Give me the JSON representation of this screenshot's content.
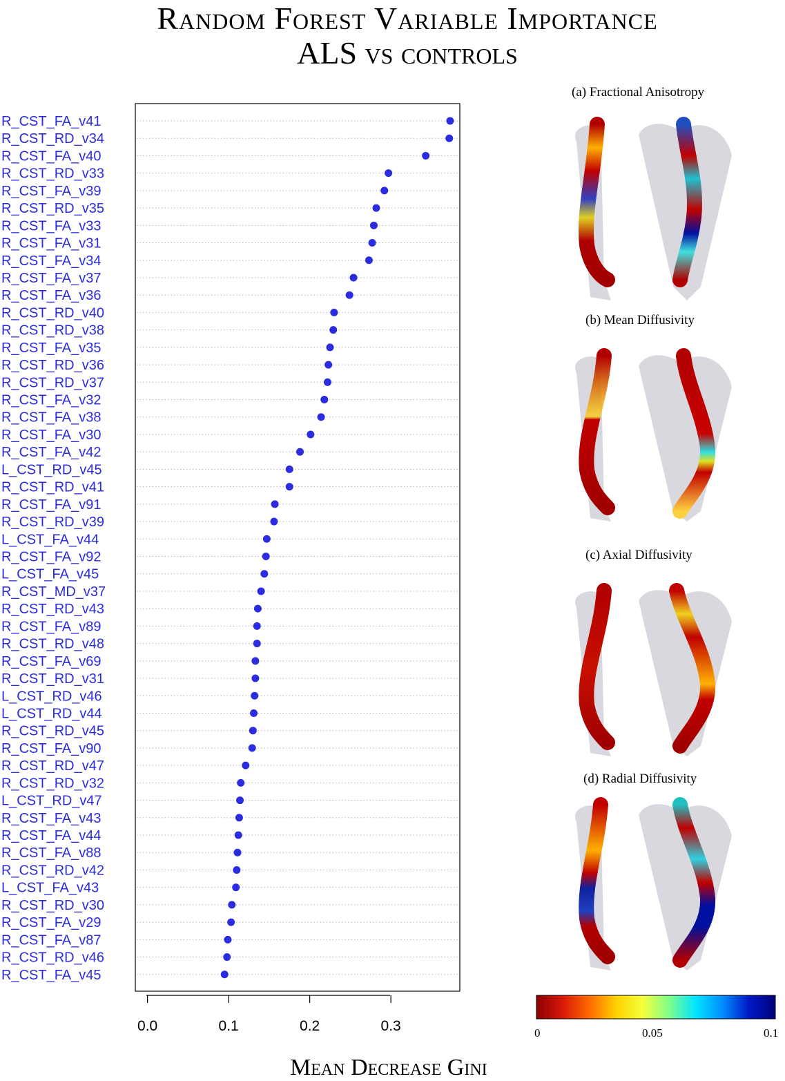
{
  "title": {
    "line1": "Random Forest Variable Importance",
    "line2": "ALS vs controls"
  },
  "chart_data": {
    "type": "scatter",
    "style": "dot-chart",
    "xlabel": "Mean Decrease Gini",
    "xticks": [
      "0.0",
      "0.1",
      "0.2",
      "0.3"
    ],
    "xlim": [
      -0.015,
      0.385
    ],
    "grid": "dotted horizontal",
    "point_color": "#2b2bdf",
    "label_color": "#2b2bdf",
    "variables": [
      {
        "name": "R_CST_FA_v41",
        "value": 0.373
      },
      {
        "name": "R_CST_RD_v34",
        "value": 0.372
      },
      {
        "name": "R_CST_FA_v40",
        "value": 0.343
      },
      {
        "name": "R_CST_RD_v33",
        "value": 0.297
      },
      {
        "name": "R_CST_FA_v39",
        "value": 0.292
      },
      {
        "name": "R_CST_RD_v35",
        "value": 0.282
      },
      {
        "name": "R_CST_FA_v33",
        "value": 0.279
      },
      {
        "name": "R_CST_FA_v31",
        "value": 0.277
      },
      {
        "name": "R_CST_FA_v34",
        "value": 0.273
      },
      {
        "name": "R_CST_FA_v37",
        "value": 0.254
      },
      {
        "name": "R_CST_FA_v36",
        "value": 0.249
      },
      {
        "name": "R_CST_RD_v40",
        "value": 0.23
      },
      {
        "name": "R_CST_RD_v38",
        "value": 0.229
      },
      {
        "name": "R_CST_FA_v35",
        "value": 0.225
      },
      {
        "name": "R_CST_RD_v36",
        "value": 0.223
      },
      {
        "name": "R_CST_RD_v37",
        "value": 0.222
      },
      {
        "name": "R_CST_FA_v32",
        "value": 0.218
      },
      {
        "name": "R_CST_FA_v38",
        "value": 0.214
      },
      {
        "name": "R_CST_FA_v30",
        "value": 0.201
      },
      {
        "name": "R_CST_FA_v42",
        "value": 0.188
      },
      {
        "name": "L_CST_RD_v45",
        "value": 0.175
      },
      {
        "name": "R_CST_RD_v41",
        "value": 0.175
      },
      {
        "name": "R_CST_FA_v91",
        "value": 0.157
      },
      {
        "name": "R_CST_RD_v39",
        "value": 0.156
      },
      {
        "name": "L_CST_FA_v44",
        "value": 0.147
      },
      {
        "name": "R_CST_FA_v92",
        "value": 0.146
      },
      {
        "name": "L_CST_FA_v45",
        "value": 0.144
      },
      {
        "name": "R_CST_MD_v37",
        "value": 0.14
      },
      {
        "name": "R_CST_RD_v43",
        "value": 0.136
      },
      {
        "name": "R_CST_FA_v89",
        "value": 0.135
      },
      {
        "name": "R_CST_RD_v48",
        "value": 0.135
      },
      {
        "name": "R_CST_FA_v69",
        "value": 0.133
      },
      {
        "name": "R_CST_RD_v31",
        "value": 0.133
      },
      {
        "name": "L_CST_RD_v46",
        "value": 0.132
      },
      {
        "name": "L_CST_RD_v44",
        "value": 0.131
      },
      {
        "name": "R_CST_RD_v45",
        "value": 0.13
      },
      {
        "name": "R_CST_FA_v90",
        "value": 0.129
      },
      {
        "name": "R_CST_RD_v47",
        "value": 0.121
      },
      {
        "name": "R_CST_RD_v32",
        "value": 0.115
      },
      {
        "name": "L_CST_RD_v47",
        "value": 0.114
      },
      {
        "name": "R_CST_FA_v43",
        "value": 0.113
      },
      {
        "name": "R_CST_FA_v44",
        "value": 0.112
      },
      {
        "name": "R_CST_FA_v88",
        "value": 0.111
      },
      {
        "name": "R_CST_RD_v42",
        "value": 0.11
      },
      {
        "name": "L_CST_FA_v43",
        "value": 0.109
      },
      {
        "name": "R_CST_RD_v30",
        "value": 0.104
      },
      {
        "name": "R_CST_FA_v29",
        "value": 0.103
      },
      {
        "name": "R_CST_FA_v87",
        "value": 0.099
      },
      {
        "name": "R_CST_RD_v46",
        "value": 0.098
      },
      {
        "name": "R_CST_FA_v45",
        "value": 0.095
      }
    ]
  },
  "panels": [
    {
      "title": "(a) Fractional Anisotropy"
    },
    {
      "title": "(b) Mean Diffusivity"
    },
    {
      "title": "(c) Axial Diffusivity"
    },
    {
      "title": "(d) Radial Diffusivity"
    }
  ],
  "colorbar": {
    "colors": [
      "#8b0000",
      "#d81a0a",
      "#ff6a00",
      "#ffd000",
      "#f5ff3a",
      "#7fff8a",
      "#00e5ff",
      "#008cff",
      "#0018c8",
      "#00007a"
    ],
    "ticks": [
      "0",
      "0.05",
      "0.1"
    ],
    "range": [
      0,
      0.1
    ]
  }
}
